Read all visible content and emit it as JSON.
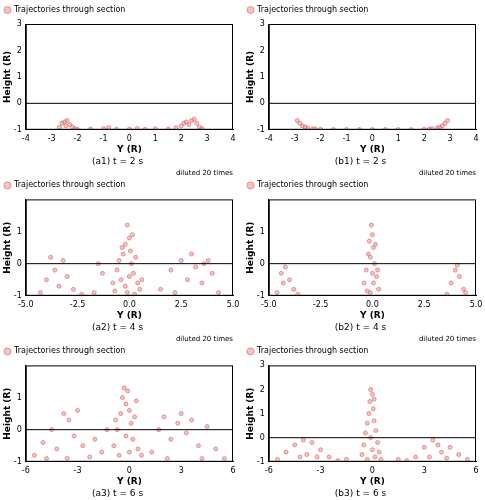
{
  "chart_data": [
    {
      "type": "scatter",
      "title": "(a1) t = 2 s",
      "x_label": "Y (R)",
      "y_label": "Height (R)",
      "legend": "upper left",
      "grid": false,
      "hline": 0,
      "xlim": [
        -4,
        4
      ],
      "xticks": [
        -4,
        -3,
        -2,
        -1,
        0,
        1,
        2,
        3,
        4
      ],
      "ylim": [
        -1,
        3
      ],
      "yticks": [
        -1,
        0,
        1,
        2,
        3
      ],
      "series": [
        {
          "name": "Trajectories through section",
          "color": "#e07070",
          "marker": "circle",
          "x": [
            -2.7,
            -2.6,
            -2.5,
            -2.45,
            -2.4,
            -2.3,
            -2.2,
            -2.1,
            -2.0,
            -1.5,
            -1.0,
            -0.8,
            -0.5,
            0.0,
            0.3,
            0.6,
            1.0,
            1.5,
            1.8,
            2.0,
            2.1,
            2.2,
            2.3,
            2.4,
            2.5,
            2.6,
            2.7,
            2.8
          ],
          "values": [
            -0.9,
            -0.75,
            -0.7,
            -0.85,
            -0.65,
            -0.8,
            -0.9,
            -0.95,
            -0.98,
            -0.97,
            -0.95,
            -0.92,
            -0.98,
            -0.97,
            -0.95,
            -0.98,
            -0.96,
            -0.97,
            -0.92,
            -0.85,
            -0.75,
            -0.7,
            -0.8,
            -0.65,
            -0.6,
            -0.75,
            -0.9,
            -0.95
          ]
        }
      ]
    },
    {
      "type": "scatter",
      "title": "(b1) t = 2 s",
      "x_label": "Y (R)",
      "y_label": "Height (R)",
      "legend": "upper left",
      "grid": false,
      "hline": 0,
      "xlim": [
        -4,
        4
      ],
      "xticks": [
        -4,
        -3,
        -2,
        -1,
        0,
        1,
        2,
        3,
        4
      ],
      "ylim": [
        -1,
        3
      ],
      "yticks": [
        -1,
        0,
        1,
        2,
        3
      ],
      "series": [
        {
          "name": "Trajectories through section",
          "color": "#e07070",
          "marker": "circle",
          "x": [
            -2.9,
            -2.8,
            -2.7,
            -2.6,
            -2.5,
            -2.3,
            -2.2,
            -2.0,
            -1.5,
            -1.0,
            -0.5,
            0,
            0.5,
            1.0,
            1.5,
            2.0,
            2.2,
            2.3,
            2.5,
            2.6,
            2.7,
            2.8,
            2.9
          ],
          "values": [
            -0.65,
            -0.75,
            -0.85,
            -0.9,
            -0.93,
            -0.96,
            -0.97,
            -0.98,
            -0.99,
            -0.99,
            -0.99,
            -0.99,
            -0.99,
            -0.99,
            -0.99,
            -0.98,
            -0.97,
            -0.96,
            -0.93,
            -0.9,
            -0.85,
            -0.75,
            -0.65
          ]
        }
      ]
    },
    {
      "type": "scatter",
      "title": "(a2) t = 4 s",
      "x_label": "Y (R)",
      "y_label": "Height (R)",
      "annotation": "diluted 20 times",
      "legend": "upper left",
      "grid": false,
      "hline": 0,
      "xlim": [
        -5,
        5
      ],
      "xticks": [
        {
          "value": -5,
          "label": "-5.0"
        },
        {
          "value": -2.5,
          "label": "-2.5"
        },
        {
          "value": 0,
          "label": "0.0"
        },
        {
          "value": 2.5,
          "label": "2.5"
        },
        {
          "value": 5,
          "label": "5.0"
        }
      ],
      "ylim": [
        -1,
        2
      ],
      "yticks": [
        -1,
        0,
        1
      ],
      "series": [
        {
          "name": "Trajectories through section",
          "color": "#e07070",
          "marker": "circle",
          "x": [
            -0.8,
            -0.6,
            -0.5,
            -0.4,
            -0.3,
            -0.2,
            -0.1,
            0,
            0.05,
            0.1,
            0.2,
            0.3,
            0.4,
            0.5,
            -0.1,
            0.0,
            -0.2,
            0.15,
            -0.35,
            0.6,
            -0.7,
            0.25,
            -4.3,
            -4.0,
            -3.8,
            -3.6,
            -3.4,
            -3.2,
            -3.0,
            -2.7,
            -2.3,
            -1.7,
            -1.3,
            -1.5,
            1.5,
            2.0,
            2.5,
            2.8,
            3.0,
            3.2,
            3.5,
            3.8,
            4.0,
            4.3,
            2.2,
            3.6
          ],
          "values": [
            -0.6,
            -0.2,
            0.1,
            -0.5,
            0.3,
            0.6,
            1.2,
            0.8,
            0.4,
            0.0,
            -0.3,
            0.2,
            -0.6,
            -0.8,
            -0.9,
            -0.4,
            -0.7,
            0.9,
            0.5,
            -0.5,
            -0.85,
            -0.95,
            -0.9,
            -0.5,
            0.2,
            -0.2,
            -0.7,
            0.1,
            -0.4,
            -0.8,
            -0.95,
            -0.9,
            -0.3,
            0.0,
            -0.8,
            -0.2,
            0.1,
            -0.5,
            0.3,
            -0.1,
            -0.6,
            0.1,
            -0.3,
            -0.9,
            -0.9,
            0.0
          ]
        }
      ]
    },
    {
      "type": "scatter",
      "title": "(b2) t = 4 s",
      "x_label": "Y (R)",
      "y_label": "Height (R)",
      "annotation": "diluted 20 times",
      "legend": "upper left",
      "grid": false,
      "hline": 0,
      "xlim": [
        -5,
        5
      ],
      "xticks": [
        {
          "value": -5,
          "label": "-5.0"
        },
        {
          "value": -2.5,
          "label": "-2.5"
        },
        {
          "value": 0,
          "label": "0.0"
        },
        {
          "value": 2.5,
          "label": "2.5"
        },
        {
          "value": 5,
          "label": "5.0"
        }
      ],
      "ylim": [
        -1,
        2
      ],
      "yticks": [
        -1,
        0,
        1
      ],
      "series": [
        {
          "name": "Trajectories through section",
          "color": "#e07070",
          "marker": "circle",
          "x": [
            -0.4,
            -0.3,
            -0.2,
            -0.15,
            -0.05,
            0,
            0.05,
            0.1,
            0.2,
            0.3,
            -0.1,
            0,
            0.15,
            -0.25,
            0.05,
            -0.1,
            0.25,
            -4.6,
            -4.4,
            -4.2,
            -4.0,
            -3.8,
            -4.3,
            -3.6,
            3.6,
            3.8,
            4.0,
            4.2,
            4.4,
            4.1,
            4.5
          ],
          "values": [
            -0.6,
            -0.2,
            0.3,
            0.7,
            1.2,
            0.9,
            0.5,
            0.0,
            -0.4,
            -0.8,
            -0.9,
            -0.3,
            0.6,
            -0.85,
            -0.6,
            0.2,
            -0.2,
            -0.9,
            -0.3,
            -0.1,
            -0.5,
            -0.8,
            -0.6,
            -0.95,
            -0.95,
            -0.6,
            -0.2,
            -0.4,
            -0.8,
            -0.05,
            -0.9
          ]
        }
      ]
    },
    {
      "type": "scatter",
      "title": "(a3) t = 6 s",
      "x_label": "Y (R)",
      "y_label": "Height (R)",
      "annotation": "diluted 20 times",
      "legend": "upper left",
      "grid": false,
      "hline": 0,
      "xlim": [
        -6,
        6
      ],
      "xticks": [
        -6,
        -3,
        0,
        3,
        6
      ],
      "ylim": [
        -1,
        2
      ],
      "yticks": [
        -1,
        0,
        1
      ],
      "series": [
        {
          "name": "Trajectories through section",
          "color": "#e07070",
          "marker": "circle",
          "x": [
            -0.9,
            -0.7,
            -0.5,
            -0.4,
            -0.3,
            -0.2,
            -0.1,
            0,
            0.1,
            0.2,
            0.3,
            0.5,
            0.7,
            -0.6,
            -0.2,
            0,
            0.4,
            -0.8,
            -5.5,
            -5.0,
            -4.5,
            -4.2,
            -3.8,
            -3.5,
            -3.2,
            -3.0,
            -2.7,
            -2.3,
            -2.0,
            -1.6,
            -1.3,
            -4.8,
            -3.6,
            1.3,
            1.7,
            2.0,
            2.4,
            2.8,
            3.0,
            3.3,
            3.6,
            4.0,
            4.5,
            5.0,
            5.5,
            2.2,
            4.2
          ],
          "values": [
            -0.5,
            0.0,
            0.5,
            1.0,
            1.3,
            0.8,
            1.2,
            0.6,
            0.2,
            -0.3,
            0.4,
            -0.6,
            -0.8,
            -0.8,
            -0.2,
            -0.7,
            0.9,
            0.3,
            -0.8,
            -0.4,
            0.0,
            -0.6,
            0.5,
            0.3,
            -0.2,
            0.6,
            -0.5,
            -0.85,
            -0.3,
            -0.7,
            0.0,
            -0.9,
            -0.9,
            -0.7,
            0.0,
            0.4,
            -0.3,
            0.2,
            0.5,
            -0.1,
            0.3,
            -0.5,
            0.1,
            -0.6,
            -0.9,
            -0.9,
            -0.9
          ]
        }
      ]
    },
    {
      "type": "scatter",
      "title": "(b3) t = 6 s",
      "x_label": "Y (R)",
      "y_label": "Height (R)",
      "annotation": "diluted 20 times",
      "legend": "upper left",
      "grid": false,
      "hline": 0,
      "xlim": [
        -6,
        6
      ],
      "xticks": [
        -6,
        -3,
        0,
        3,
        6
      ],
      "ylim": [
        -1,
        3
      ],
      "yticks": [
        -1,
        0,
        1,
        2,
        3
      ],
      "series": [
        {
          "name": "Trajectories through section",
          "color": "#e07070",
          "marker": "circle",
          "x": [
            -0.6,
            -0.5,
            -0.4,
            -0.3,
            -0.2,
            -0.15,
            -0.1,
            0,
            0.05,
            0.1,
            0.2,
            0.3,
            0.4,
            0.5,
            0,
            -0.1,
            0.15,
            -0.3,
            0.1,
            -5.5,
            -5.0,
            -4.5,
            -4.0,
            -3.5,
            -3.0,
            -2.5,
            -2.0,
            -3.8,
            -3.2,
            -4.2,
            -1.5,
            1.5,
            2.0,
            2.5,
            3.0,
            3.5,
            3.8,
            4.0,
            4.5,
            5.0,
            5.5,
            3.3,
            4.3
          ],
          "values": [
            -0.7,
            -0.3,
            0.2,
            0.6,
            1.0,
            1.5,
            2.0,
            1.8,
            1.2,
            0.7,
            0.3,
            -0.2,
            -0.6,
            -0.9,
            -0.5,
            0.0,
            -0.8,
            -0.9,
            1.6,
            -0.9,
            -0.6,
            -0.3,
            -0.1,
            -0.2,
            -0.5,
            -0.8,
            -0.95,
            -0.7,
            -0.8,
            -0.8,
            -0.9,
            -0.9,
            -0.95,
            -0.8,
            -0.4,
            -0.1,
            -0.3,
            -0.6,
            -0.4,
            -0.7,
            -0.9,
            -0.8,
            -0.85
          ]
        }
      ]
    }
  ]
}
